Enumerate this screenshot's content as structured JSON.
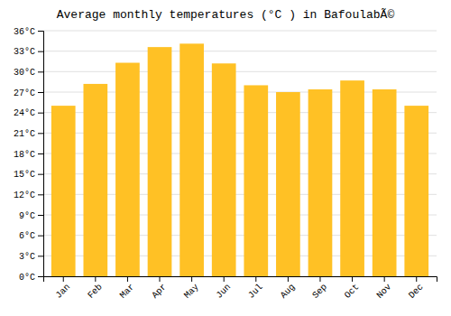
{
  "chart_data": {
    "type": "bar",
    "title": "Average monthly temperatures (°C ) in BafoulabÃ©",
    "categories": [
      "Jan",
      "Feb",
      "Mar",
      "Apr",
      "May",
      "Jun",
      "Jul",
      "Aug",
      "Sep",
      "Oct",
      "Nov",
      "Dec"
    ],
    "values": [
      25.0,
      28.2,
      31.3,
      33.6,
      34.1,
      31.2,
      28.0,
      27.0,
      27.4,
      28.7,
      27.4,
      25.0
    ],
    "color": "#FFC125",
    "ylim": [
      0,
      36
    ],
    "yticks": [
      {
        "value": 0,
        "label": "0°C"
      },
      {
        "value": 3,
        "label": "3°C"
      },
      {
        "value": 6,
        "label": "6°C"
      },
      {
        "value": 9,
        "label": "9°C"
      },
      {
        "value": 12,
        "label": "12°C"
      },
      {
        "value": 15,
        "label": "15°C"
      },
      {
        "value": 18,
        "label": "18°C"
      },
      {
        "value": 21,
        "label": "21°C"
      },
      {
        "value": 24,
        "label": "24°C"
      },
      {
        "value": 27,
        "label": "27°C"
      },
      {
        "value": 30,
        "label": "30°C"
      },
      {
        "value": 33,
        "label": "33°C"
      },
      {
        "value": 36,
        "label": "36°C"
      }
    ],
    "grid": true
  }
}
